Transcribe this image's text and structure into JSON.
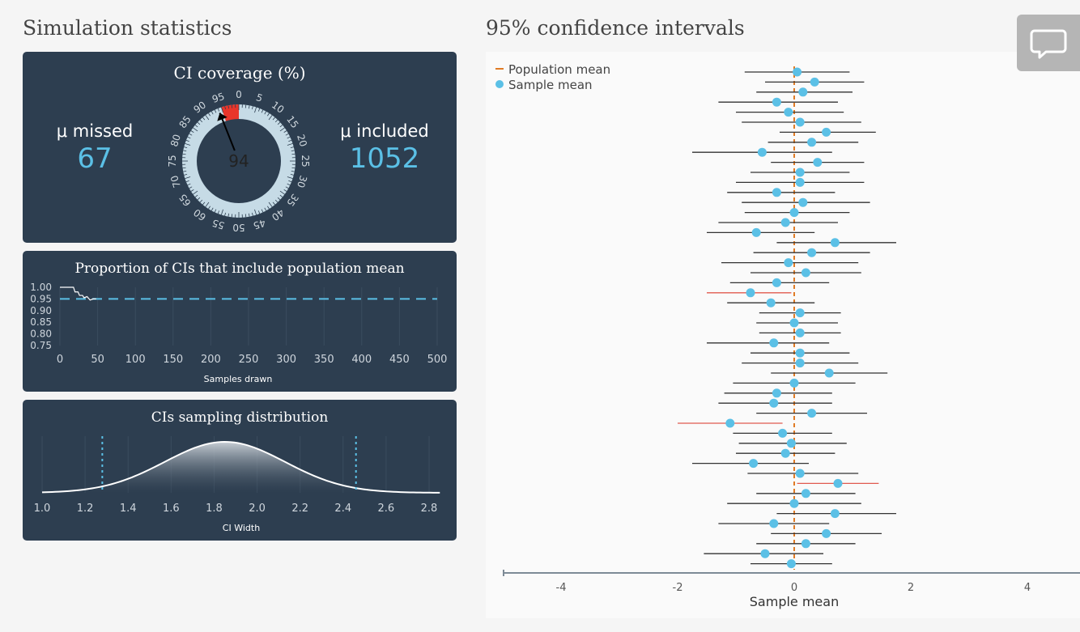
{
  "headings": {
    "left": "Simulation statistics",
    "right": "95% confidence intervals"
  },
  "coverage": {
    "title": "CI coverage (%)",
    "missed_label": "μ missed",
    "missed_value": "67",
    "included_label": "μ included",
    "included_value": "1052",
    "gauge_value": "94",
    "gauge_value_num": 94,
    "highlight_from": 95,
    "gauge_ticks": [
      "0",
      "5",
      "10",
      "15",
      "20",
      "25",
      "30",
      "35",
      "40",
      "45",
      "50",
      "55",
      "60",
      "65",
      "70",
      "75",
      "80",
      "85",
      "90",
      "95"
    ]
  },
  "proportion_chart": {
    "title": "Proportion of CIs that include population mean",
    "xlabel": "Samples drawn",
    "x_ticks": [
      "0",
      "50",
      "100",
      "150",
      "200",
      "250",
      "300",
      "350",
      "400",
      "450",
      "500"
    ],
    "y_ticks": [
      "1.00",
      "0.95",
      "0.90",
      "0.85",
      "0.80",
      "0.75"
    ],
    "reference": 0.95,
    "line": [
      [
        0,
        1.0
      ],
      [
        18,
        1.0
      ],
      [
        20,
        0.98
      ],
      [
        24,
        0.98
      ],
      [
        26,
        0.965
      ],
      [
        30,
        0.965
      ],
      [
        32,
        0.955
      ],
      [
        36,
        0.96
      ],
      [
        40,
        0.945
      ],
      [
        44,
        0.95
      ],
      [
        48,
        0.95
      ]
    ]
  },
  "distribution_chart": {
    "title": "CIs sampling distribution",
    "xlabel": "CI Width",
    "x_ticks": [
      "1.0",
      "1.2",
      "1.4",
      "1.6",
      "1.8",
      "2.0",
      "2.2",
      "2.4",
      "2.6",
      "2.8"
    ],
    "mean": 1.85,
    "sd": 0.28,
    "cutoffs": [
      1.28,
      2.46
    ]
  },
  "chart_data": {
    "type": "scatter",
    "title": "95% confidence intervals",
    "xlabel": "Sample mean",
    "x_ticks": [
      "-4",
      "-2",
      "0",
      "2",
      "4"
    ],
    "xlim": [
      -5,
      5
    ],
    "population_mean": 0,
    "legend": [
      "Population mean",
      "Sample mean"
    ],
    "colors": {
      "included": "#333333",
      "missed": "#e05a4f",
      "point": "#5bc0e6",
      "mean": "#e07b25"
    },
    "intervals": [
      {
        "mean": 0.05,
        "lo": -0.85,
        "hi": 0.95
      },
      {
        "mean": 0.35,
        "lo": -0.5,
        "hi": 1.2
      },
      {
        "mean": 0.15,
        "lo": -0.65,
        "hi": 1.0
      },
      {
        "mean": -0.3,
        "lo": -1.3,
        "hi": 0.75
      },
      {
        "mean": -0.1,
        "lo": -1.0,
        "hi": 0.85
      },
      {
        "mean": 0.1,
        "lo": -0.9,
        "hi": 1.15
      },
      {
        "mean": 0.55,
        "lo": -0.25,
        "hi": 1.4
      },
      {
        "mean": 0.3,
        "lo": -0.45,
        "hi": 1.1
      },
      {
        "mean": -0.55,
        "lo": -1.75,
        "hi": 0.65
      },
      {
        "mean": 0.4,
        "lo": -0.4,
        "hi": 1.2
      },
      {
        "mean": 0.1,
        "lo": -0.75,
        "hi": 0.95
      },
      {
        "mean": 0.1,
        "lo": -1.0,
        "hi": 1.2
      },
      {
        "mean": -0.3,
        "lo": -1.15,
        "hi": 0.7
      },
      {
        "mean": 0.15,
        "lo": -0.9,
        "hi": 1.3
      },
      {
        "mean": 0.0,
        "lo": -0.85,
        "hi": 0.95
      },
      {
        "mean": -0.15,
        "lo": -1.3,
        "hi": 0.75
      },
      {
        "mean": -0.65,
        "lo": -1.5,
        "hi": 0.35
      },
      {
        "mean": 0.7,
        "lo": -0.3,
        "hi": 1.75
      },
      {
        "mean": 0.3,
        "lo": -0.7,
        "hi": 1.3
      },
      {
        "mean": -0.1,
        "lo": -1.25,
        "hi": 1.1
      },
      {
        "mean": 0.2,
        "lo": -0.75,
        "hi": 1.15
      },
      {
        "mean": -0.3,
        "lo": -1.1,
        "hi": 0.6
      },
      {
        "mean": -0.75,
        "lo": -1.5,
        "hi": -0.05
      },
      {
        "mean": -0.4,
        "lo": -1.15,
        "hi": 0.35
      },
      {
        "mean": 0.1,
        "lo": -0.6,
        "hi": 0.8
      },
      {
        "mean": 0.0,
        "lo": -0.65,
        "hi": 0.75
      },
      {
        "mean": 0.1,
        "lo": -0.6,
        "hi": 0.8
      },
      {
        "mean": -0.35,
        "lo": -1.5,
        "hi": 0.6
      },
      {
        "mean": 0.1,
        "lo": -0.75,
        "hi": 0.95
      },
      {
        "mean": 0.1,
        "lo": -0.9,
        "hi": 1.1
      },
      {
        "mean": 0.6,
        "lo": -0.4,
        "hi": 1.6
      },
      {
        "mean": 0.0,
        "lo": -1.05,
        "hi": 1.05
      },
      {
        "mean": -0.3,
        "lo": -1.2,
        "hi": 0.65
      },
      {
        "mean": -0.35,
        "lo": -1.3,
        "hi": 0.65
      },
      {
        "mean": 0.3,
        "lo": -0.65,
        "hi": 1.25
      },
      {
        "mean": -1.1,
        "lo": -2.0,
        "hi": -0.2
      },
      {
        "mean": -0.2,
        "lo": -1.05,
        "hi": 0.65
      },
      {
        "mean": -0.05,
        "lo": -0.95,
        "hi": 0.9
      },
      {
        "mean": -0.15,
        "lo": -1.0,
        "hi": 0.7
      },
      {
        "mean": -0.7,
        "lo": -1.75,
        "hi": 0.25
      },
      {
        "mean": 0.1,
        "lo": -0.8,
        "hi": 1.1
      },
      {
        "mean": 0.75,
        "lo": 0.05,
        "hi": 1.45
      },
      {
        "mean": 0.2,
        "lo": -0.65,
        "hi": 1.05
      },
      {
        "mean": 0.0,
        "lo": -1.15,
        "hi": 1.15
      },
      {
        "mean": 0.7,
        "lo": -0.3,
        "hi": 1.75
      },
      {
        "mean": -0.35,
        "lo": -1.3,
        "hi": 0.6
      },
      {
        "mean": 0.55,
        "lo": -0.4,
        "hi": 1.5
      },
      {
        "mean": 0.2,
        "lo": -0.65,
        "hi": 1.05
      },
      {
        "mean": -0.5,
        "lo": -1.55,
        "hi": 0.5
      },
      {
        "mean": -0.05,
        "lo": -0.75,
        "hi": 0.65
      }
    ]
  }
}
